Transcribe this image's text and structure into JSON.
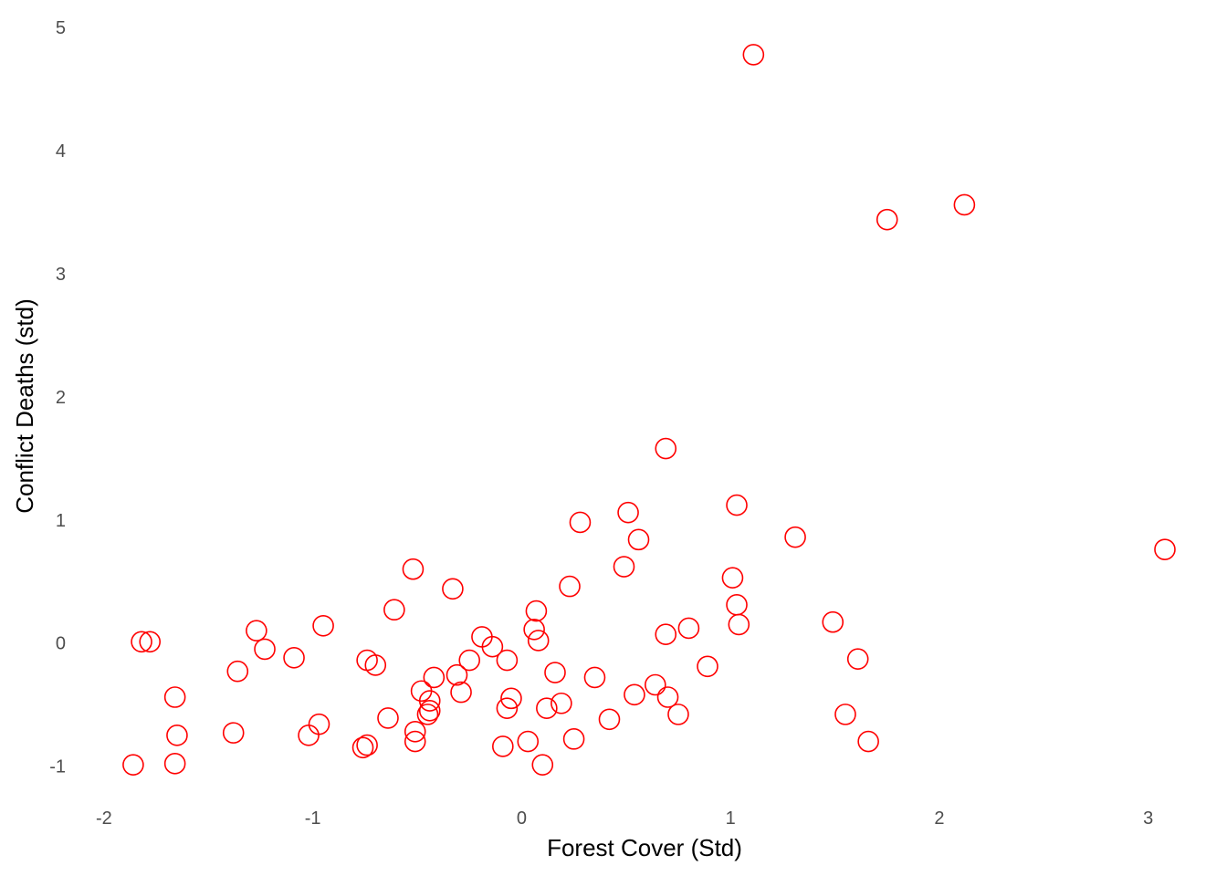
{
  "chart_data": {
    "type": "scatter",
    "title": "",
    "xlabel": "Forest Cover (Std)",
    "ylabel": "Conflict Deaths (std)",
    "xlim": [
      -2.1,
      3.15
    ],
    "ylim": [
      -1.3,
      5.15
    ],
    "x_ticks": [
      -2,
      -1,
      0,
      1,
      2,
      3
    ],
    "x_tick_labels": [
      "-2",
      "-1",
      "0",
      "1",
      "2",
      "3"
    ],
    "y_ticks": [
      -1,
      0,
      1,
      2,
      3,
      4,
      5
    ],
    "y_tick_labels": [
      "-1",
      "0",
      "1",
      "2",
      "3",
      "4",
      "5"
    ],
    "grid": false,
    "marker": "open-circle",
    "marker_color": "#ff0000",
    "points": [
      [
        1.11,
        4.78
      ],
      [
        2.12,
        3.56
      ],
      [
        1.75,
        3.44
      ],
      [
        0.69,
        1.58
      ],
      [
        0.51,
        1.06
      ],
      [
        1.03,
        1.12
      ],
      [
        0.28,
        0.98
      ],
      [
        1.31,
        0.86
      ],
      [
        0.56,
        0.84
      ],
      [
        3.08,
        0.76
      ],
      [
        0.49,
        0.62
      ],
      [
        -0.52,
        0.6
      ],
      [
        1.01,
        0.53
      ],
      [
        0.23,
        0.46
      ],
      [
        -0.33,
        0.44
      ],
      [
        1.03,
        0.31
      ],
      [
        -0.61,
        0.27
      ],
      [
        0.07,
        0.26
      ],
      [
        1.49,
        0.17
      ],
      [
        1.04,
        0.15
      ],
      [
        -0.95,
        0.14
      ],
      [
        0.8,
        0.12
      ],
      [
        0.06,
        0.11
      ],
      [
        -1.27,
        0.1
      ],
      [
        0.69,
        0.07
      ],
      [
        -0.19,
        0.05
      ],
      [
        -1.82,
        0.01
      ],
      [
        -1.78,
        0.01
      ],
      [
        0.08,
        0.02
      ],
      [
        -0.14,
        -0.03
      ],
      [
        -1.23,
        -0.05
      ],
      [
        -1.09,
        -0.12
      ],
      [
        -0.74,
        -0.14
      ],
      [
        -0.25,
        -0.14
      ],
      [
        -0.07,
        -0.14
      ],
      [
        1.61,
        -0.13
      ],
      [
        -0.7,
        -0.18
      ],
      [
        0.89,
        -0.19
      ],
      [
        -1.36,
        -0.23
      ],
      [
        0.16,
        -0.24
      ],
      [
        -0.31,
        -0.26
      ],
      [
        -0.42,
        -0.28
      ],
      [
        0.35,
        -0.28
      ],
      [
        0.64,
        -0.34
      ],
      [
        -0.48,
        -0.39
      ],
      [
        -0.29,
        -0.4
      ],
      [
        0.54,
        -0.42
      ],
      [
        -1.66,
        -0.44
      ],
      [
        -0.05,
        -0.45
      ],
      [
        0.7,
        -0.44
      ],
      [
        -0.44,
        -0.47
      ],
      [
        0.19,
        -0.49
      ],
      [
        0.12,
        -0.53
      ],
      [
        -0.07,
        -0.53
      ],
      [
        -0.44,
        -0.55
      ],
      [
        -0.45,
        -0.58
      ],
      [
        0.75,
        -0.58
      ],
      [
        1.55,
        -0.58
      ],
      [
        -0.64,
        -0.61
      ],
      [
        0.42,
        -0.62
      ],
      [
        -0.97,
        -0.66
      ],
      [
        -0.51,
        -0.72
      ],
      [
        -1.38,
        -0.73
      ],
      [
        -1.65,
        -0.75
      ],
      [
        -1.02,
        -0.75
      ],
      [
        0.25,
        -0.78
      ],
      [
        -0.51,
        -0.8
      ],
      [
        1.66,
        -0.8
      ],
      [
        0.03,
        -0.8
      ],
      [
        -0.74,
        -0.83
      ],
      [
        -0.76,
        -0.85
      ],
      [
        -0.09,
        -0.84
      ],
      [
        -1.66,
        -0.98
      ],
      [
        -1.86,
        -0.99
      ],
      [
        0.1,
        -0.99
      ]
    ]
  }
}
